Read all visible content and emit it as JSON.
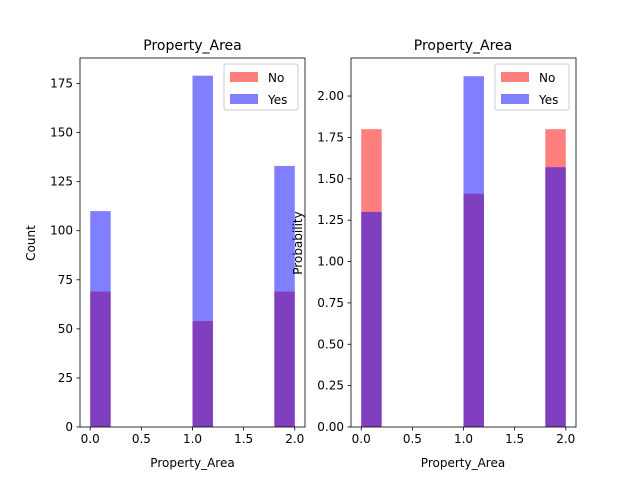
{
  "chart_data": [
    {
      "type": "bar",
      "title": "Property_Area",
      "xlabel": "Property_Area",
      "ylabel": "Count",
      "xlim": [
        -0.1,
        2.1
      ],
      "ylim": [
        0,
        188
      ],
      "xticks": [
        "0.0",
        "0.5",
        "1.0",
        "1.5",
        "2.0"
      ],
      "yticks": [
        "0",
        "25",
        "50",
        "75",
        "100",
        "125",
        "150",
        "175"
      ],
      "legend_position": "top-right",
      "bins": [
        {
          "x0": 0.0,
          "x1": 0.2
        },
        {
          "x0": 1.0,
          "x1": 1.2
        },
        {
          "x0": 1.8,
          "x1": 2.0
        }
      ],
      "series": [
        {
          "name": "No",
          "color": "#ff0000",
          "opacity": 0.5,
          "values": [
            69,
            54,
            69
          ]
        },
        {
          "name": "Yes",
          "color": "#0000ff",
          "opacity": 0.5,
          "values": [
            110,
            179,
            133
          ]
        }
      ]
    },
    {
      "type": "bar",
      "title": "Property_Area",
      "xlabel": "Property_Area",
      "ylabel": "Probability",
      "xlim": [
        -0.1,
        2.1
      ],
      "ylim": [
        0,
        2.23
      ],
      "xticks": [
        "0.0",
        "0.5",
        "1.0",
        "1.5",
        "2.0"
      ],
      "yticks": [
        "0.00",
        "0.25",
        "0.50",
        "0.75",
        "1.00",
        "1.25",
        "1.50",
        "1.75",
        "2.00"
      ],
      "legend_position": "top-right",
      "bins": [
        {
          "x0": 0.0,
          "x1": 0.2
        },
        {
          "x0": 1.0,
          "x1": 1.2
        },
        {
          "x0": 1.8,
          "x1": 2.0
        }
      ],
      "series": [
        {
          "name": "No",
          "color": "#ff0000",
          "opacity": 0.5,
          "values": [
            1.8,
            1.41,
            1.8
          ]
        },
        {
          "name": "Yes",
          "color": "#0000ff",
          "opacity": 0.5,
          "values": [
            1.3,
            2.12,
            1.57
          ]
        }
      ]
    }
  ]
}
